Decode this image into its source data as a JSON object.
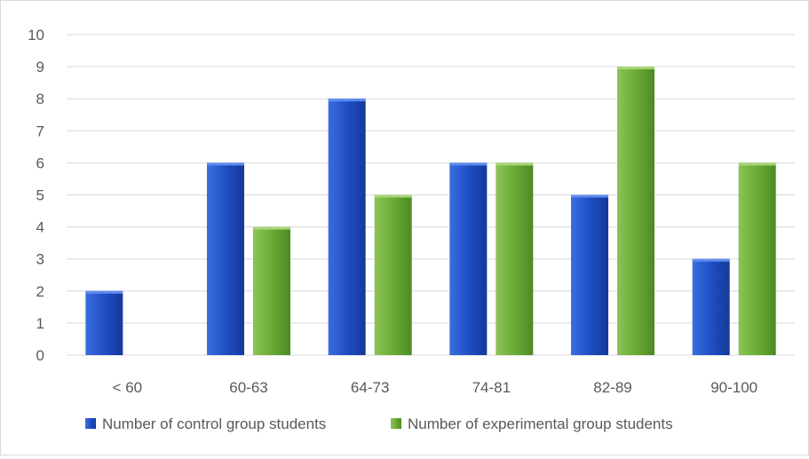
{
  "chart_data": {
    "type": "bar",
    "categories": [
      "< 60",
      "60-63",
      "64-73",
      "74-81",
      "82-89",
      "90-100"
    ],
    "series": [
      {
        "name": "Number of control group students",
        "values": [
          2,
          6,
          8,
          6,
          5,
          3
        ],
        "color": "#2e5fd0"
      },
      {
        "name": "Number of experimental group students",
        "values": [
          0,
          4,
          5,
          6,
          9,
          6
        ],
        "color": "#6aab35"
      }
    ],
    "title": "",
    "xlabel": "",
    "ylabel": "",
    "ylim": [
      0,
      10
    ],
    "yticks": [
      0,
      1,
      2,
      3,
      4,
      5,
      6,
      7,
      8,
      9,
      10
    ],
    "grid": true,
    "legend": "bottom"
  }
}
